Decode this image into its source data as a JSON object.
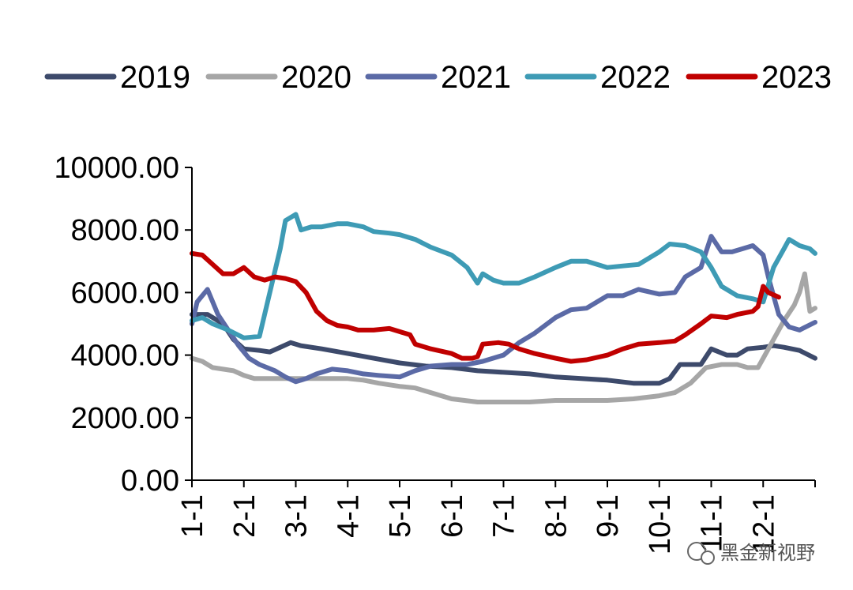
{
  "chart_data": {
    "type": "line",
    "title": "",
    "xlabel": "",
    "ylabel": "",
    "ylim": [
      0,
      10000
    ],
    "y_ticks": [
      0,
      2000,
      4000,
      6000,
      8000,
      10000
    ],
    "y_tick_labels": [
      "0.00",
      "2000.00",
      "4000.00",
      "6000.00",
      "8000.00",
      "10000.00"
    ],
    "x_range_months": [
      1,
      13
    ],
    "x_ticks": [
      1,
      2,
      3,
      4,
      5,
      6,
      7,
      8,
      9,
      10,
      11,
      12
    ],
    "x_tick_labels": [
      "1-1",
      "2-1",
      "3-1",
      "4-1",
      "5-1",
      "6-1",
      "7-1",
      "8-1",
      "9-1",
      "10-1",
      "11-1",
      "12-1"
    ],
    "grid": false,
    "legend_position": "top",
    "series": [
      {
        "name": "2019",
        "color": "#3d4a6b",
        "points": [
          [
            1.0,
            5300
          ],
          [
            1.3,
            5300
          ],
          [
            1.6,
            5000
          ],
          [
            1.8,
            4500
          ],
          [
            2.0,
            4200
          ],
          [
            2.3,
            4150
          ],
          [
            2.5,
            4100
          ],
          [
            2.7,
            4250
          ],
          [
            2.9,
            4400
          ],
          [
            3.1,
            4300
          ],
          [
            3.5,
            4200
          ],
          [
            4.0,
            4050
          ],
          [
            4.5,
            3900
          ],
          [
            5.0,
            3750
          ],
          [
            5.5,
            3650
          ],
          [
            6.0,
            3600
          ],
          [
            6.5,
            3500
          ],
          [
            7.0,
            3450
          ],
          [
            7.5,
            3400
          ],
          [
            8.0,
            3300
          ],
          [
            8.5,
            3250
          ],
          [
            9.0,
            3200
          ],
          [
            9.5,
            3100
          ],
          [
            9.8,
            3100
          ],
          [
            10.0,
            3100
          ],
          [
            10.2,
            3250
          ],
          [
            10.4,
            3700
          ],
          [
            10.8,
            3700
          ],
          [
            11.0,
            4200
          ],
          [
            11.3,
            4000
          ],
          [
            11.5,
            4000
          ],
          [
            11.7,
            4200
          ],
          [
            12.0,
            4250
          ],
          [
            12.2,
            4300
          ],
          [
            12.4,
            4250
          ],
          [
            12.7,
            4150
          ],
          [
            13.0,
            3900
          ]
        ]
      },
      {
        "name": "2020",
        "color": "#a6a6a6",
        "points": [
          [
            1.0,
            3900
          ],
          [
            1.2,
            3800
          ],
          [
            1.4,
            3600
          ],
          [
            1.8,
            3500
          ],
          [
            2.0,
            3350
          ],
          [
            2.2,
            3250
          ],
          [
            2.5,
            3250
          ],
          [
            3.0,
            3250
          ],
          [
            3.3,
            3250
          ],
          [
            4.0,
            3250
          ],
          [
            4.3,
            3200
          ],
          [
            4.6,
            3100
          ],
          [
            5.0,
            3000
          ],
          [
            5.3,
            2950
          ],
          [
            5.6,
            2800
          ],
          [
            6.0,
            2600
          ],
          [
            6.5,
            2500
          ],
          [
            7.0,
            2500
          ],
          [
            7.5,
            2500
          ],
          [
            8.0,
            2550
          ],
          [
            8.5,
            2550
          ],
          [
            9.0,
            2550
          ],
          [
            9.5,
            2600
          ],
          [
            10.0,
            2700
          ],
          [
            10.3,
            2800
          ],
          [
            10.6,
            3100
          ],
          [
            10.9,
            3600
          ],
          [
            11.2,
            3700
          ],
          [
            11.5,
            3700
          ],
          [
            11.7,
            3600
          ],
          [
            11.9,
            3600
          ],
          [
            12.0,
            3900
          ],
          [
            12.2,
            4500
          ],
          [
            12.4,
            5100
          ],
          [
            12.6,
            5600
          ],
          [
            12.7,
            6000
          ],
          [
            12.8,
            6600
          ],
          [
            12.9,
            5400
          ],
          [
            13.0,
            5500
          ]
        ]
      },
      {
        "name": "2021",
        "color": "#5b6aa6",
        "points": [
          [
            1.0,
            5000
          ],
          [
            1.1,
            5700
          ],
          [
            1.3,
            6100
          ],
          [
            1.5,
            5300
          ],
          [
            1.7,
            4800
          ],
          [
            1.9,
            4300
          ],
          [
            2.1,
            3900
          ],
          [
            2.3,
            3700
          ],
          [
            2.6,
            3500
          ],
          [
            2.8,
            3300
          ],
          [
            3.0,
            3150
          ],
          [
            3.2,
            3250
          ],
          [
            3.4,
            3400
          ],
          [
            3.7,
            3550
          ],
          [
            4.0,
            3500
          ],
          [
            4.3,
            3400
          ],
          [
            4.6,
            3350
          ],
          [
            5.0,
            3300
          ],
          [
            5.3,
            3500
          ],
          [
            5.6,
            3650
          ],
          [
            6.0,
            3700
          ],
          [
            6.3,
            3700
          ],
          [
            6.6,
            3800
          ],
          [
            7.0,
            4000
          ],
          [
            7.3,
            4400
          ],
          [
            7.6,
            4700
          ],
          [
            8.0,
            5200
          ],
          [
            8.3,
            5450
          ],
          [
            8.6,
            5500
          ],
          [
            9.0,
            5900
          ],
          [
            9.3,
            5900
          ],
          [
            9.6,
            6100
          ],
          [
            10.0,
            5950
          ],
          [
            10.3,
            6000
          ],
          [
            10.5,
            6500
          ],
          [
            10.8,
            6800
          ],
          [
            11.0,
            7800
          ],
          [
            11.2,
            7300
          ],
          [
            11.4,
            7300
          ],
          [
            11.6,
            7400
          ],
          [
            11.8,
            7500
          ],
          [
            12.0,
            7200
          ],
          [
            12.1,
            6500
          ],
          [
            12.3,
            5300
          ],
          [
            12.5,
            4900
          ],
          [
            12.7,
            4800
          ],
          [
            13.0,
            5050
          ]
        ]
      },
      {
        "name": "2022",
        "color": "#3e9bb5",
        "points": [
          [
            1.0,
            5100
          ],
          [
            1.2,
            5200
          ],
          [
            1.4,
            5000
          ],
          [
            1.7,
            4800
          ],
          [
            2.0,
            4550
          ],
          [
            2.3,
            4600
          ],
          [
            2.5,
            6000
          ],
          [
            2.7,
            7400
          ],
          [
            2.8,
            8300
          ],
          [
            3.0,
            8500
          ],
          [
            3.1,
            8000
          ],
          [
            3.3,
            8100
          ],
          [
            3.5,
            8100
          ],
          [
            3.8,
            8200
          ],
          [
            4.0,
            8200
          ],
          [
            4.3,
            8100
          ],
          [
            4.5,
            7950
          ],
          [
            4.8,
            7900
          ],
          [
            5.0,
            7850
          ],
          [
            5.3,
            7700
          ],
          [
            5.6,
            7450
          ],
          [
            6.0,
            7200
          ],
          [
            6.3,
            6800
          ],
          [
            6.5,
            6300
          ],
          [
            6.6,
            6600
          ],
          [
            6.8,
            6400
          ],
          [
            7.0,
            6300
          ],
          [
            7.3,
            6300
          ],
          [
            7.6,
            6500
          ],
          [
            8.0,
            6800
          ],
          [
            8.3,
            7000
          ],
          [
            8.6,
            7000
          ],
          [
            9.0,
            6800
          ],
          [
            9.3,
            6850
          ],
          [
            9.6,
            6900
          ],
          [
            10.0,
            7300
          ],
          [
            10.2,
            7550
          ],
          [
            10.5,
            7500
          ],
          [
            10.8,
            7300
          ],
          [
            11.0,
            6800
          ],
          [
            11.2,
            6200
          ],
          [
            11.5,
            5900
          ],
          [
            11.8,
            5800
          ],
          [
            12.0,
            5700
          ],
          [
            12.2,
            6800
          ],
          [
            12.4,
            7400
          ],
          [
            12.5,
            7700
          ],
          [
            12.7,
            7500
          ],
          [
            12.9,
            7400
          ],
          [
            13.0,
            7250
          ]
        ]
      },
      {
        "name": "2023",
        "color": "#c00000",
        "points": [
          [
            1.0,
            7250
          ],
          [
            1.2,
            7200
          ],
          [
            1.4,
            6900
          ],
          [
            1.6,
            6600
          ],
          [
            1.8,
            6600
          ],
          [
            2.0,
            6800
          ],
          [
            2.2,
            6500
          ],
          [
            2.4,
            6400
          ],
          [
            2.6,
            6500
          ],
          [
            2.8,
            6450
          ],
          [
            3.0,
            6350
          ],
          [
            3.2,
            6000
          ],
          [
            3.4,
            5400
          ],
          [
            3.6,
            5100
          ],
          [
            3.8,
            4950
          ],
          [
            4.0,
            4900
          ],
          [
            4.2,
            4800
          ],
          [
            4.5,
            4800
          ],
          [
            4.8,
            4850
          ],
          [
            5.0,
            4750
          ],
          [
            5.2,
            4650
          ],
          [
            5.3,
            4350
          ],
          [
            5.6,
            4200
          ],
          [
            6.0,
            4050
          ],
          [
            6.2,
            3900
          ],
          [
            6.4,
            3900
          ],
          [
            6.5,
            3950
          ],
          [
            6.6,
            4350
          ],
          [
            6.9,
            4400
          ],
          [
            7.1,
            4350
          ],
          [
            7.3,
            4200
          ],
          [
            7.6,
            4050
          ],
          [
            8.0,
            3900
          ],
          [
            8.3,
            3800
          ],
          [
            8.6,
            3850
          ],
          [
            9.0,
            4000
          ],
          [
            9.3,
            4200
          ],
          [
            9.6,
            4350
          ],
          [
            10.0,
            4400
          ],
          [
            10.3,
            4450
          ],
          [
            10.5,
            4650
          ],
          [
            10.8,
            5000
          ],
          [
            11.0,
            5250
          ],
          [
            11.3,
            5200
          ],
          [
            11.5,
            5300
          ],
          [
            11.8,
            5400
          ],
          [
            11.9,
            5550
          ],
          [
            12.0,
            6200
          ],
          [
            12.1,
            6000
          ],
          [
            12.3,
            5850
          ]
        ]
      }
    ]
  },
  "watermark": {
    "text": "黑金新视野"
  }
}
